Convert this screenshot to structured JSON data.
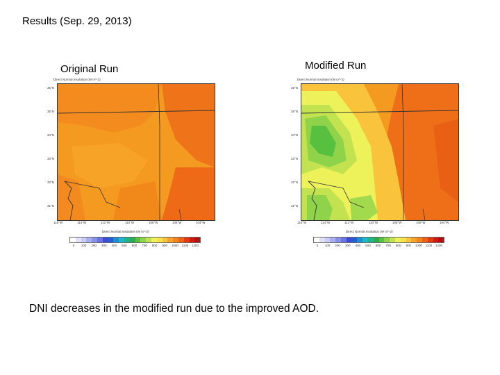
{
  "slide": {
    "title": "Results (Sep. 29, 2013)",
    "footer": "DNI decreases in the modified run due to the improved AOD."
  },
  "panels": [
    {
      "label": "Original Run",
      "map_title": "Direct Normal Insolation (W m^-2)",
      "colorbar_title": "Direct Normal Insolation (W m^-2)"
    },
    {
      "label": "Modified Run",
      "map_title": "Direct Normal Insolation (W m^-2)",
      "colorbar_title": "Direct Normal Insolation (W m^-2)"
    }
  ],
  "lat_ticks": [
    "36°N",
    "35°N",
    "34°N",
    "33°N",
    "32°N",
    "31°N"
  ],
  "lon_ticks": [
    "116°W",
    "114°W",
    "112°W",
    "110°W",
    "108°W",
    "106°W",
    "104°W"
  ],
  "colorbar": {
    "labels": [
      "0",
      "100",
      "200",
      "300",
      "400",
      "500",
      "600",
      "700",
      "800",
      "900",
      "1000",
      "1100",
      "1200"
    ],
    "colors": [
      "#ffffff",
      "#dfe0f8",
      "#c8cbf5",
      "#a9aef0",
      "#8a90ea",
      "#6a72e4",
      "#3c4bd8",
      "#1f5fd0",
      "#1c8fd3",
      "#1fb6c8",
      "#21b48a",
      "#2bab4a",
      "#57c03e",
      "#8fd34a",
      "#c3e24f",
      "#eef25a",
      "#f9e04a",
      "#f9c33b",
      "#f7a22c",
      "#f3851f",
      "#ee6216",
      "#e53a11",
      "#d01a10",
      "#b80f0e"
    ]
  }
}
